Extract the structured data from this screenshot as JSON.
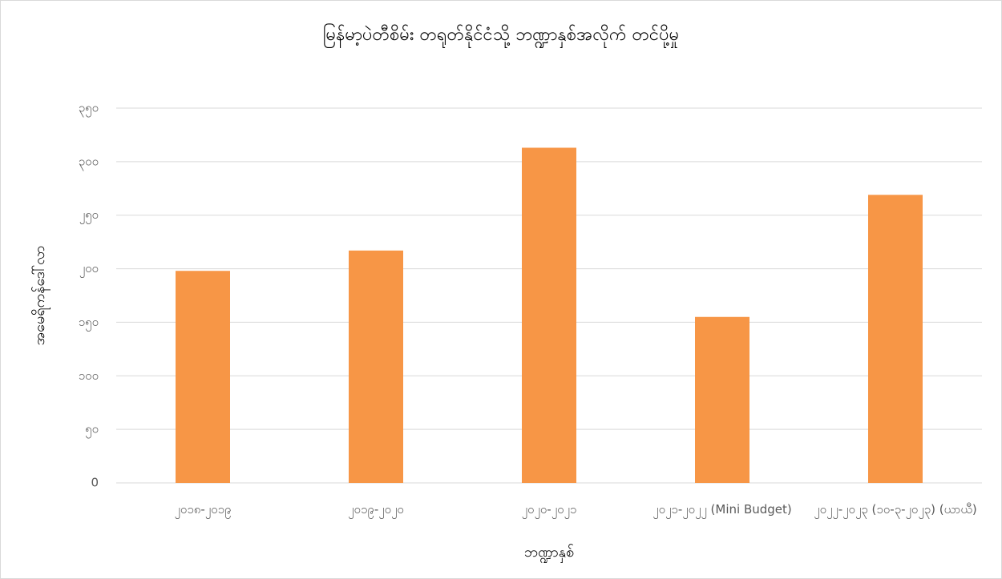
{
  "chart_data": {
    "type": "bar",
    "title": "မြန်မာ့ပဲတီစိမ်း တရုတ်နိုင်ငံသို့ ဘဏ္ဍာနှစ်အလိုက် တင်ပို့မှု",
    "y_label": "အမေရိကန်ဒေါ်လာ",
    "x_label": "ဘဏ္ဍာနှစ်",
    "categories": [
      "၂၀၁၈-၂၀၁၉",
      "၂၀၁၉-၂၀၂၀",
      "၂၀၂၀-၂၀၂၁",
      "၂၀၂၁-၂၀၂၂ (Mini Budget)",
      "၂၀၂၂-၂၀၂၃ (၁၀-၃-၂၀၂၃) (ယာယီ)"
    ],
    "values": [
      198,
      217,
      313,
      155,
      269
    ],
    "color": "#f79646",
    "ylim": [
      0,
      350
    ],
    "yticks": [
      0,
      {
        "value": 50,
        "label": "၅၀"
      },
      {
        "value": 100,
        "label": "၁၀၀"
      },
      {
        "value": 150,
        "label": "၁၅၀"
      },
      {
        "value": 200,
        "label": "၂၀၀"
      },
      {
        "value": 250,
        "label": "၂၅၀"
      },
      {
        "value": 300,
        "label": "၃၀၀"
      },
      {
        "value": 350,
        "label": "၃၅၀"
      }
    ],
    "grid": true
  }
}
